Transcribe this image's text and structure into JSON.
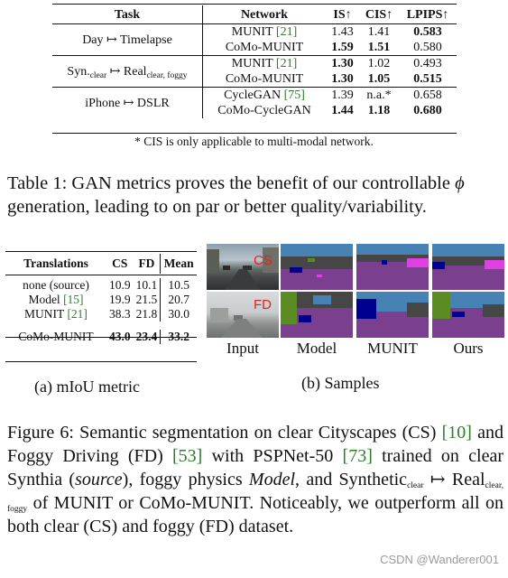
{
  "table1": {
    "headers": {
      "task": "Task",
      "network": "Network",
      "is": "IS↑",
      "cis": "CIS↑",
      "lpips": "LPIPS↑"
    },
    "groups": [
      {
        "task_main": "Day ↦ Timelapse",
        "task_sub": "",
        "task_main2": "",
        "task_sub2": "",
        "rows": [
          {
            "network": "MUNIT",
            "cite": "[21]",
            "is": "1.43",
            "cis": "1.41",
            "lpips": "0.583",
            "bold": [
              false,
              false,
              true
            ]
          },
          {
            "network": "CoMo-MUNIT",
            "cite": "",
            "is": "1.59",
            "cis": "1.51",
            "lpips": "0.580",
            "bold": [
              true,
              true,
              false
            ]
          }
        ]
      },
      {
        "task_main": "Syn.",
        "task_sub": "clear",
        "task_main2": " ↦ Real",
        "task_sub2": "clear, foggy",
        "rows": [
          {
            "network": "MUNIT",
            "cite": "[21]",
            "is": "1.30",
            "cis": "1.02",
            "lpips": "0.493",
            "bold": [
              true,
              false,
              false
            ]
          },
          {
            "network": "CoMo-MUNIT",
            "cite": "",
            "is": "1.30",
            "cis": "1.05",
            "lpips": "0.515",
            "bold": [
              true,
              true,
              true
            ]
          }
        ]
      },
      {
        "task_main": "iPhone ↦ DSLR",
        "task_sub": "",
        "task_main2": "",
        "task_sub2": "",
        "rows": [
          {
            "network": "CycleGAN",
            "cite": "[75]",
            "is": "1.39",
            "cis": "n.a.*",
            "lpips": "0.658",
            "bold": [
              false,
              false,
              false
            ]
          },
          {
            "network": "CoMo-CycleGAN",
            "cite": "",
            "is": "1.44",
            "cis": "1.18",
            "lpips": "0.680",
            "bold": [
              true,
              true,
              true
            ]
          }
        ]
      }
    ],
    "note": "* CIS is only applicable to multi-modal network."
  },
  "caption1": {
    "text1": "Table 1: GAN metrics proves the benefit of our controllable",
    "phi": "ϕ",
    "text2": " generation, leading to on par or better quality/variability."
  },
  "table_a": {
    "headers": {
      "translations": "Translations",
      "cs": "CS",
      "fd": "FD",
      "mean": "Mean"
    },
    "rows": [
      {
        "name": "none (source)",
        "cite": "",
        "cs": "10.9",
        "fd": "10.1",
        "mean": "10.5"
      },
      {
        "name": "Model",
        "cite": "[15]",
        "cs": "19.9",
        "fd": "21.5",
        "mean": "20.7"
      },
      {
        "name": "MUNIT",
        "cite": "[21]",
        "cs": "38.3",
        "fd": "21.8",
        "mean": "30.0"
      }
    ],
    "final": {
      "name": "CoMo-MUNIT",
      "cs": "43.0",
      "fd": "23.4",
      "mean": "33.2"
    },
    "caption": "(a) mIoU metric"
  },
  "samples": {
    "tag_cs": "CS",
    "tag_fd": "FD",
    "labels": [
      "Input",
      "Model",
      "MUNIT",
      "Ours"
    ],
    "caption": "(b) Samples",
    "colors": {
      "road": "#7b3f8f",
      "sidewalk": "#e040e0",
      "building": "#464646",
      "vegetation": "#5a8c23",
      "sky": "#4682b4",
      "car": "#00008e",
      "tag": "#e62020"
    }
  },
  "caption6": {
    "p1": "Figure 6: Semantic segmentation on clear Cityscapes (CS) ",
    "c1": "[10]",
    "p2": " and Foggy Driving (FD) ",
    "c2": "[53]",
    "p3": " with PSPNet-50 ",
    "c3": "[73]",
    "p4": " trained on clear Synthia (",
    "src": "source",
    "p5": "), foggy physics ",
    "model": "Model",
    "p6": ", and Synthetic",
    "sub1": "clear",
    "p7": " ↦ Real",
    "sub2": "clear, foggy",
    "p8": " of MUNIT or CoMo-MUNIT. Noticeably, we outperform all on both clear (CS) and foggy (FD) dataset."
  },
  "watermark": "CSDN @Wanderer001"
}
